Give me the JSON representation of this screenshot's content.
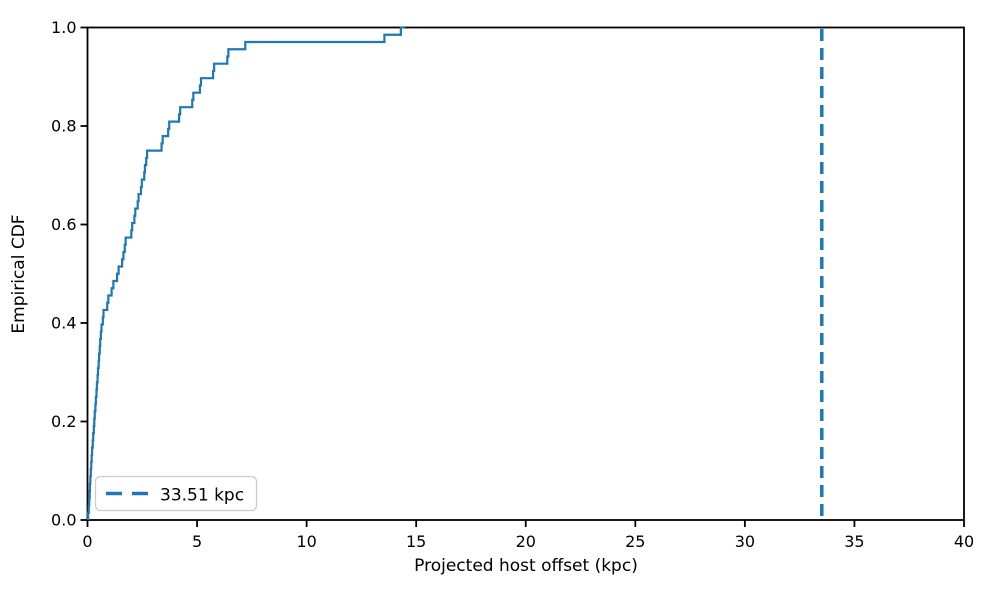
{
  "figure": {
    "background": "#ffffff"
  },
  "chart_data": {
    "type": "line",
    "subtype": "ecdf-step",
    "title": "",
    "xlabel": "Projected host offset (kpc)",
    "ylabel": "Empirical CDF",
    "xlim": [
      0,
      40
    ],
    "ylim": [
      0.0,
      1.0
    ],
    "x_ticks": [
      "0",
      "5",
      "10",
      "15",
      "20",
      "25",
      "30",
      "35",
      "40"
    ],
    "y_ticks": [
      "0.0",
      "0.2",
      "0.4",
      "0.6",
      "0.8",
      "1.0"
    ],
    "grid": false,
    "legend": {
      "position": "lower left",
      "label": "33.51 kpc",
      "marker": "dashed-line"
    },
    "vline_x": 33.51,
    "curve_end_x": 14.5,
    "sample_values_kpc": [
      0.03,
      0.06,
      0.08,
      0.1,
      0.11,
      0.13,
      0.15,
      0.17,
      0.19,
      0.21,
      0.24,
      0.26,
      0.29,
      0.31,
      0.33,
      0.36,
      0.38,
      0.41,
      0.43,
      0.46,
      0.48,
      0.51,
      0.53,
      0.56,
      0.58,
      0.61,
      0.64,
      0.7,
      0.73,
      0.9,
      0.95,
      1.1,
      1.18,
      1.35,
      1.42,
      1.58,
      1.64,
      1.7,
      1.74,
      2.0,
      2.04,
      2.14,
      2.18,
      2.29,
      2.33,
      2.44,
      2.48,
      2.59,
      2.62,
      2.68,
      2.72,
      3.38,
      3.43,
      3.68,
      3.73,
      4.18,
      4.23,
      4.78,
      4.83,
      5.13,
      5.18,
      5.73,
      5.78,
      6.38,
      6.43,
      7.2,
      13.55,
      14.3
    ],
    "colors": {
      "series": "#1f77b4",
      "vline": "#1f77b4",
      "axes": "#000000",
      "text": "#000000",
      "legend_border": "#cccccc",
      "legend_bg": "#ffffff"
    }
  }
}
